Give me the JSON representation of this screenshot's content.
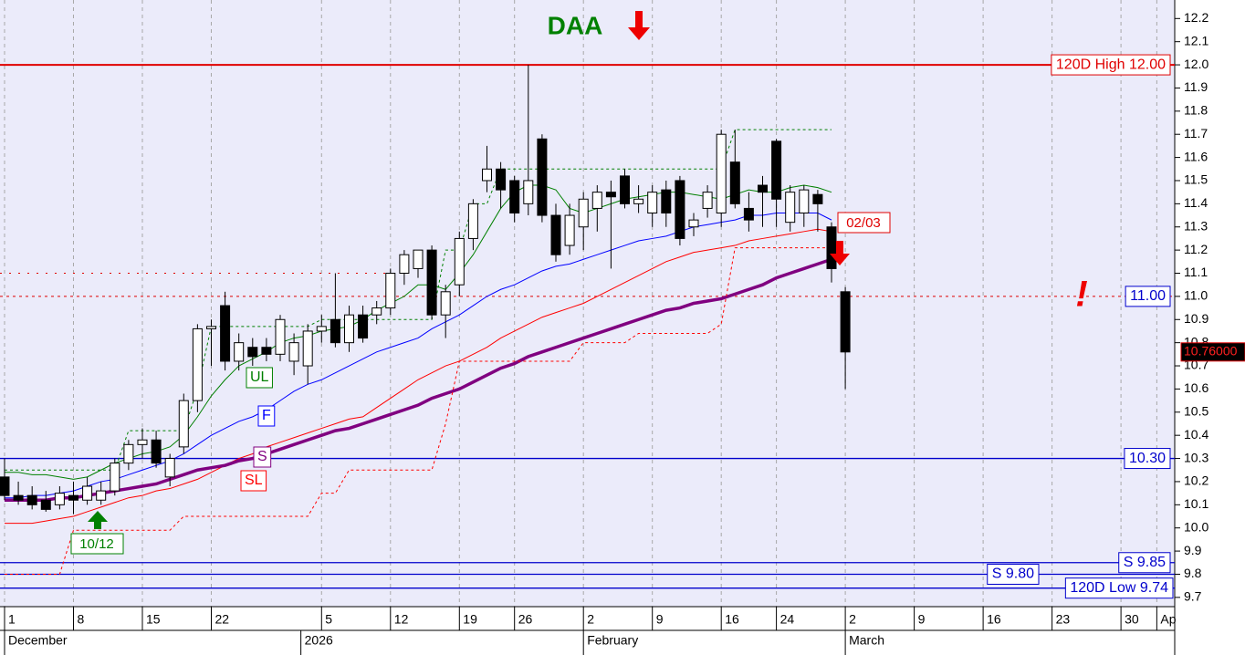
{
  "chart_data": {
    "type": "candlestick",
    "title": "DAA",
    "annotations": [
      "02/03",
      "10/12",
      "!"
    ],
    "x": [
      0,
      1,
      2,
      3,
      4,
      5,
      6,
      7,
      8,
      9,
      10,
      11,
      12,
      13,
      14,
      15,
      16,
      17,
      18,
      19,
      20,
      21,
      22,
      23,
      24,
      25,
      26,
      27,
      28,
      29,
      30,
      31,
      32,
      33,
      34,
      35,
      36,
      37,
      38,
      39,
      40,
      41,
      42,
      43,
      44,
      45,
      46,
      47,
      48,
      49,
      50,
      51,
      52,
      53,
      54,
      55,
      56,
      57,
      58,
      59,
      60,
      61
    ],
    "open": [
      10.22,
      10.14,
      10.14,
      10.12,
      10.1,
      10.14,
      10.12,
      10.12,
      10.16,
      10.28,
      10.36,
      10.38,
      10.22,
      10.35,
      10.55,
      10.86,
      10.96,
      10.72,
      10.78,
      10.78,
      10.75,
      10.72,
      10.7,
      10.85,
      10.9,
      10.8,
      10.92,
      10.92,
      10.95,
      11.1,
      11.12,
      11.2,
      10.92,
      11.05,
      11.25,
      11.5,
      11.55,
      11.5,
      11.4,
      11.68,
      11.35,
      11.22,
      11.3,
      11.38,
      11.45,
      11.52,
      11.4,
      11.36,
      11.46,
      11.5,
      11.3,
      11.38,
      11.36,
      11.58,
      11.38,
      11.48,
      11.67,
      11.32,
      11.36,
      11.44,
      11.3,
      11.02
    ],
    "high": [
      10.3,
      10.2,
      10.18,
      10.16,
      10.18,
      10.2,
      10.22,
      10.2,
      10.3,
      10.38,
      10.43,
      10.42,
      10.32,
      10.58,
      10.88,
      10.9,
      11.02,
      10.84,
      10.82,
      10.82,
      10.92,
      10.84,
      10.88,
      10.92,
      11.1,
      10.96,
      10.96,
      10.98,
      11.12,
      11.2,
      11.2,
      11.22,
      11.05,
      11.28,
      11.42,
      11.65,
      11.58,
      11.52,
      12.0,
      11.7,
      11.4,
      11.4,
      11.45,
      11.48,
      11.5,
      11.55,
      11.48,
      11.48,
      11.5,
      11.52,
      11.36,
      11.48,
      11.72,
      11.72,
      11.45,
      11.52,
      11.68,
      11.48,
      11.48,
      11.46,
      11.32,
      11.04
    ],
    "low": [
      10.12,
      10.1,
      10.08,
      10.07,
      10.08,
      10.06,
      10.1,
      10.1,
      10.14,
      10.25,
      10.3,
      10.26,
      10.18,
      10.32,
      10.5,
      10.7,
      10.68,
      10.68,
      10.7,
      10.72,
      10.72,
      10.66,
      10.62,
      10.8,
      10.78,
      10.76,
      10.8,
      10.88,
      10.92,
      11.05,
      11.08,
      10.9,
      10.82,
      11.0,
      11.2,
      11.45,
      11.38,
      11.32,
      11.35,
      11.32,
      11.15,
      11.18,
      11.2,
      11.28,
      11.12,
      11.38,
      11.36,
      11.3,
      11.3,
      11.22,
      11.26,
      11.34,
      11.3,
      11.38,
      11.28,
      11.3,
      11.3,
      11.28,
      11.3,
      11.28,
      11.06,
      10.6
    ],
    "close": [
      10.14,
      10.12,
      10.1,
      10.08,
      10.15,
      10.12,
      10.18,
      10.16,
      10.28,
      10.36,
      10.38,
      10.28,
      10.3,
      10.55,
      10.86,
      10.87,
      10.72,
      10.8,
      10.74,
      10.75,
      10.9,
      10.8,
      10.85,
      10.87,
      10.8,
      10.92,
      10.82,
      10.95,
      11.1,
      11.18,
      11.2,
      10.92,
      11.02,
      11.25,
      11.4,
      11.55,
      11.46,
      11.36,
      11.5,
      11.35,
      11.18,
      11.35,
      11.42,
      11.45,
      11.43,
      11.4,
      11.42,
      11.45,
      11.36,
      11.25,
      11.33,
      11.45,
      11.7,
      11.4,
      11.33,
      11.45,
      11.42,
      11.45,
      11.46,
      11.4,
      11.12,
      10.76
    ],
    "series": [
      {
        "name": "UL",
        "color": "#008000",
        "width": 1,
        "values": [
          10.24,
          10.24,
          10.23,
          10.23,
          10.22,
          10.21,
          10.22,
          10.25,
          10.28,
          10.3,
          10.32,
          10.33,
          10.35,
          10.4,
          10.48,
          10.57,
          10.64,
          10.7,
          10.73,
          10.76,
          10.8,
          10.82,
          10.83,
          10.85,
          10.86,
          10.87,
          10.9,
          10.94,
          10.97,
          11.0,
          11.05,
          11.05,
          11.03,
          11.1,
          11.18,
          11.28,
          11.38,
          11.45,
          11.48,
          11.48,
          11.46,
          11.38,
          11.36,
          11.38,
          11.4,
          11.42,
          11.43,
          11.44,
          11.45,
          11.45,
          11.44,
          11.43,
          11.42,
          11.44,
          11.46,
          11.45,
          11.45,
          11.47,
          11.48,
          11.47,
          11.45,
          null
        ]
      },
      {
        "name": "F",
        "color": "#0000ff",
        "width": 1,
        "values": [
          10.13,
          10.13,
          10.14,
          10.14,
          10.15,
          10.16,
          10.18,
          10.2,
          10.21,
          10.23,
          10.25,
          10.27,
          10.29,
          10.32,
          10.36,
          10.4,
          10.43,
          10.46,
          10.48,
          10.51,
          10.55,
          10.59,
          10.62,
          10.64,
          10.67,
          10.7,
          10.73,
          10.76,
          10.78,
          10.8,
          10.82,
          10.86,
          10.89,
          10.92,
          10.96,
          11.0,
          11.03,
          11.05,
          11.08,
          11.11,
          11.13,
          11.14,
          11.16,
          11.18,
          11.2,
          11.22,
          11.24,
          11.25,
          11.26,
          11.28,
          11.3,
          11.31,
          11.32,
          11.33,
          11.35,
          11.35,
          11.36,
          11.36,
          11.36,
          11.36,
          11.33,
          null
        ]
      },
      {
        "name": "SL",
        "color": "#ff0000",
        "width": 1,
        "values": [
          10.02,
          10.02,
          10.02,
          10.03,
          10.04,
          10.05,
          10.07,
          10.09,
          10.11,
          10.13,
          10.14,
          10.16,
          10.17,
          10.19,
          10.21,
          10.24,
          10.27,
          10.3,
          10.32,
          10.35,
          10.37,
          10.39,
          10.41,
          10.43,
          10.45,
          10.47,
          10.48,
          10.52,
          10.56,
          10.6,
          10.64,
          10.67,
          10.7,
          10.72,
          10.75,
          10.78,
          10.82,
          10.85,
          10.88,
          10.91,
          10.93,
          10.95,
          10.97,
          11.0,
          11.03,
          11.06,
          11.09,
          11.12,
          11.15,
          11.17,
          11.19,
          11.2,
          11.21,
          11.22,
          11.24,
          11.25,
          11.26,
          11.27,
          11.28,
          11.29,
          11.28,
          null
        ]
      },
      {
        "name": "S",
        "color": "#800080",
        "width": 3.5,
        "values": [
          10.12,
          10.12,
          10.12,
          10.12,
          10.13,
          10.13,
          10.14,
          10.15,
          10.16,
          10.17,
          10.18,
          10.19,
          10.21,
          10.23,
          10.25,
          10.26,
          10.27,
          10.29,
          10.3,
          10.32,
          10.34,
          10.36,
          10.38,
          10.4,
          10.42,
          10.43,
          10.45,
          10.47,
          10.49,
          10.51,
          10.53,
          10.56,
          10.58,
          10.6,
          10.63,
          10.66,
          10.69,
          10.71,
          10.74,
          10.76,
          10.78,
          10.8,
          10.82,
          10.84,
          10.86,
          10.88,
          10.9,
          10.92,
          10.94,
          10.95,
          10.97,
          10.98,
          10.99,
          11.01,
          11.03,
          11.05,
          11.08,
          11.1,
          11.12,
          11.14,
          11.16,
          null
        ]
      },
      {
        "color": "#008000",
        "width": 1,
        "dash": true,
        "values": [
          10.25,
          10.25,
          10.25,
          10.25,
          10.25,
          10.25,
          10.25,
          10.25,
          10.25,
          10.42,
          10.42,
          10.42,
          10.42,
          10.42,
          10.6,
          10.87,
          10.87,
          10.87,
          10.87,
          10.87,
          10.87,
          10.87,
          10.87,
          10.9,
          10.9,
          10.9,
          10.9,
          10.9,
          10.9,
          10.9,
          10.9,
          10.9,
          11.2,
          11.2,
          11.4,
          11.4,
          11.55,
          11.55,
          11.55,
          11.55,
          11.55,
          11.55,
          11.55,
          11.55,
          11.55,
          11.55,
          11.55,
          11.55,
          11.55,
          11.55,
          11.55,
          11.55,
          11.55,
          11.72,
          11.72,
          11.72,
          11.72,
          11.72,
          11.72,
          11.72,
          11.72,
          null
        ]
      },
      {
        "color": "#ff0000",
        "width": 1,
        "dash": true,
        "values": [
          9.8,
          9.8,
          9.8,
          9.8,
          9.8,
          9.99,
          9.99,
          9.99,
          9.99,
          9.99,
          9.99,
          9.99,
          9.99,
          10.05,
          10.05,
          10.05,
          10.05,
          10.05,
          10.05,
          10.05,
          10.05,
          10.05,
          10.05,
          10.15,
          10.15,
          10.25,
          10.25,
          10.25,
          10.25,
          10.25,
          10.25,
          10.25,
          10.45,
          10.72,
          10.72,
          10.72,
          10.72,
          10.72,
          10.72,
          10.72,
          10.72,
          10.72,
          10.8,
          10.8,
          10.8,
          10.8,
          10.84,
          10.84,
          10.84,
          10.84,
          10.84,
          10.84,
          10.88,
          11.21,
          11.21,
          11.21,
          11.21,
          11.21,
          11.21,
          11.21,
          11.21,
          null
        ]
      }
    ],
    "levels": [
      {
        "value": 12,
        "label": "120D High 12.00",
        "color": "#e00000"
      },
      {
        "value": 11.1,
        "color": "#e00000",
        "dash": true,
        "to_x": 28
      },
      {
        "value": 11,
        "label": "11.00",
        "color": "#e00000",
        "label_color": "#0000cc",
        "dash": true
      },
      {
        "value": 10.3,
        "label": "10.30",
        "color": "#0000cc"
      },
      {
        "value": 9.85,
        "label": "S 9.85",
        "color": "#0000cc"
      },
      {
        "value": 9.8,
        "label": "S 9.80",
        "color": "#0000cc"
      },
      {
        "value": 9.74,
        "label": "120D Low 9.74",
        "color": "#0000cc"
      }
    ],
    "price_tag": {
      "value": 10.76,
      "label": "10.76000"
    },
    "xlim": [
      -0.33,
      84.9
    ],
    "xticks": [
      {
        "value": 0,
        "label": "1"
      },
      {
        "value": 5,
        "label": "8"
      },
      {
        "value": 10,
        "label": "15"
      },
      {
        "value": 15,
        "label": "22"
      },
      {
        "value": 23,
        "label": "5"
      },
      {
        "value": 28,
        "label": "12"
      },
      {
        "value": 33,
        "label": "19"
      },
      {
        "value": 37,
        "label": "26"
      },
      {
        "value": 42,
        "label": "2"
      },
      {
        "value": 47,
        "label": "9"
      },
      {
        "value": 52,
        "label": "16"
      },
      {
        "value": 56,
        "label": "24"
      },
      {
        "value": 61,
        "label": "2"
      },
      {
        "value": 66,
        "label": "9"
      },
      {
        "value": 71,
        "label": "16"
      },
      {
        "value": 76,
        "label": "23"
      },
      {
        "value": 81,
        "label": "30"
      },
      {
        "value": 83.6,
        "label": "Ap"
      }
    ],
    "months": [
      {
        "value": 0,
        "label": "December"
      },
      {
        "value": 21.5,
        "label": "2026"
      },
      {
        "value": 42,
        "label": "February"
      },
      {
        "value": 61,
        "label": "March"
      }
    ],
    "ylim": [
      9.66,
      12.28
    ],
    "yticks": [
      9.7,
      9.8,
      9.9,
      {
        "value": 10,
        "label": "10.0"
      },
      10.1,
      10.2,
      10.3,
      10.4,
      10.5,
      10.6,
      10.7,
      10.8,
      10.9,
      {
        "value": 11,
        "label": "11.0"
      },
      11.1,
      11.2,
      11.3,
      11.4,
      11.5,
      11.6,
      11.7,
      11.8,
      11.9,
      {
        "value": 12,
        "label": "12.0"
      },
      12.1,
      12.2
    ],
    "grid": true
  }
}
